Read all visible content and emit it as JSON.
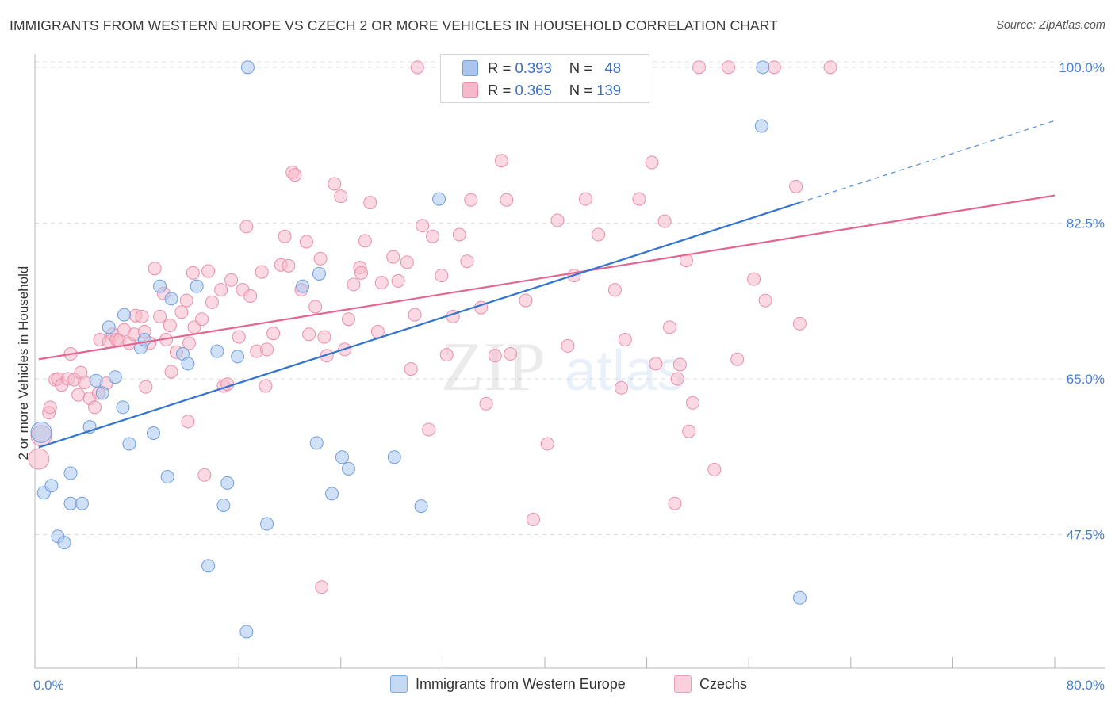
{
  "header": {
    "title": "IMMIGRANTS FROM WESTERN EUROPE VS CZECH 2 OR MORE VEHICLES IN HOUSEHOLD CORRELATION CHART",
    "source": "Source: ZipAtlas.com"
  },
  "watermark": {
    "zip": "ZIP",
    "atlas": "atlas"
  },
  "legend_top": [
    {
      "r_label": "R =",
      "r": "0.393",
      "n_label": "N =",
      "n": "48"
    },
    {
      "r_label": "R =",
      "r": "0.365",
      "n_label": "N =",
      "n": "139"
    }
  ],
  "colors": {
    "blue_fill": "#aac6ee",
    "blue_stroke": "#6f9fde",
    "blue_line": "#3575d0",
    "pink_fill": "#f6b9cb",
    "pink_stroke": "#e98fab",
    "pink_line": "#e4668f",
    "tick_label": "#4a7fd0"
  },
  "chart_data": {
    "type": "scatter",
    "title": "IMMIGRANTS FROM WESTERN EUROPE VS CZECH 2 OR MORE VEHICLES IN HOUSEHOLD CORRELATION CHART",
    "xlabel": "",
    "ylabel": "2 or more Vehicles in Household",
    "xlim": [
      0,
      80
    ],
    "ylim": [
      32.5,
      101.5
    ],
    "x_tick_labels": [
      {
        "value": 0,
        "label": "0.0%"
      },
      {
        "value": 80,
        "label": "80.0%"
      }
    ],
    "y_tick_labels": [
      {
        "value": 47.5,
        "label": "47.5%"
      },
      {
        "value": 65.0,
        "label": "65.0%"
      },
      {
        "value": 82.5,
        "label": "82.5%"
      },
      {
        "value": 100.0,
        "label": "100.0%"
      }
    ],
    "x_minor_ticks": [
      0,
      8,
      16,
      24,
      32,
      40,
      48,
      56,
      64,
      72,
      80
    ],
    "grid": true,
    "legend_position": "top-center",
    "series": [
      {
        "name": "Immigrants from Western Europe",
        "color": "#aac6ee",
        "R": 0.393,
        "N": 48,
        "trend": {
          "x": [
            0.3,
            60
          ],
          "y": [
            57.3,
            84.8
          ],
          "dashed_to": [
            80,
            94.0
          ]
        },
        "points": [
          [
            0.5,
            59.0
          ],
          [
            0.7,
            52.2
          ],
          [
            1.3,
            53.0
          ],
          [
            1.8,
            47.3
          ],
          [
            2.3,
            46.6
          ],
          [
            2.8,
            54.4
          ],
          [
            2.8,
            51.0
          ],
          [
            3.7,
            51.0
          ],
          [
            4.3,
            59.6
          ],
          [
            4.8,
            64.8
          ],
          [
            5.3,
            63.4
          ],
          [
            5.8,
            70.8
          ],
          [
            6.3,
            65.2
          ],
          [
            6.9,
            61.8
          ],
          [
            7.0,
            72.2
          ],
          [
            7.4,
            57.7
          ],
          [
            8.3,
            68.5
          ],
          [
            8.6,
            69.4
          ],
          [
            9.3,
            58.9
          ],
          [
            9.8,
            75.4
          ],
          [
            10.4,
            54.0
          ],
          [
            10.7,
            74.0
          ],
          [
            11.6,
            67.8
          ],
          [
            12.0,
            66.7
          ],
          [
            12.7,
            75.4
          ],
          [
            13.6,
            44.0
          ],
          [
            14.3,
            68.1
          ],
          [
            14.8,
            50.8
          ],
          [
            15.1,
            53.3
          ],
          [
            15.9,
            67.5
          ],
          [
            16.6,
            36.6
          ],
          [
            16.7,
            100.0
          ],
          [
            18.2,
            48.7
          ],
          [
            21.0,
            75.4
          ],
          [
            22.1,
            57.8
          ],
          [
            22.3,
            76.8
          ],
          [
            23.3,
            52.1
          ],
          [
            24.1,
            56.2
          ],
          [
            24.6,
            54.9
          ],
          [
            28.2,
            56.2
          ],
          [
            30.3,
            50.7
          ],
          [
            31.7,
            85.2
          ],
          [
            34.1,
            100.0
          ],
          [
            35.1,
            100.0
          ],
          [
            47.3,
            100.0
          ],
          [
            57.1,
            100.0
          ],
          [
            57.0,
            93.4
          ],
          [
            60.0,
            40.4
          ]
        ]
      },
      {
        "name": "Czechs",
        "color": "#f6b9cb",
        "R": 0.365,
        "N": 139,
        "trend": {
          "x": [
            0.3,
            80
          ],
          "y": [
            67.2,
            85.6
          ]
        },
        "points": [
          [
            0.3,
            56.0
          ],
          [
            0.5,
            58.6
          ],
          [
            1.1,
            61.2
          ],
          [
            1.2,
            61.8
          ],
          [
            1.6,
            64.9
          ],
          [
            1.8,
            65.0
          ],
          [
            2.1,
            64.3
          ],
          [
            2.6,
            65.0
          ],
          [
            2.8,
            67.8
          ],
          [
            3.1,
            64.9
          ],
          [
            3.4,
            63.2
          ],
          [
            3.6,
            65.7
          ],
          [
            3.9,
            64.6
          ],
          [
            4.3,
            62.8
          ],
          [
            4.7,
            61.8
          ],
          [
            5.0,
            63.4
          ],
          [
            5.1,
            69.4
          ],
          [
            5.6,
            64.5
          ],
          [
            5.8,
            69.2
          ],
          [
            6.1,
            70.0
          ],
          [
            6.4,
            69.4
          ],
          [
            6.6,
            69.3
          ],
          [
            7.0,
            70.5
          ],
          [
            7.4,
            69.0
          ],
          [
            7.8,
            70.0
          ],
          [
            7.9,
            72.1
          ],
          [
            8.4,
            72.0
          ],
          [
            8.6,
            70.3
          ],
          [
            8.7,
            64.1
          ],
          [
            9.0,
            69.0
          ],
          [
            9.4,
            77.4
          ],
          [
            9.8,
            72.0
          ],
          [
            10.1,
            74.6
          ],
          [
            10.3,
            69.4
          ],
          [
            10.6,
            71.0
          ],
          [
            10.7,
            65.8
          ],
          [
            11.1,
            68.0
          ],
          [
            11.5,
            72.5
          ],
          [
            11.9,
            73.8
          ],
          [
            12.1,
            69.0
          ],
          [
            12.4,
            76.9
          ],
          [
            12.5,
            70.8
          ],
          [
            13.1,
            71.7
          ],
          [
            13.3,
            54.2
          ],
          [
            13.6,
            77.1
          ],
          [
            13.9,
            73.6
          ],
          [
            14.6,
            75.0
          ],
          [
            14.8,
            64.2
          ],
          [
            15.1,
            64.4
          ],
          [
            15.4,
            76.1
          ],
          [
            16.0,
            69.7
          ],
          [
            16.3,
            75.0
          ],
          [
            16.6,
            82.1
          ],
          [
            16.9,
            74.3
          ],
          [
            17.4,
            68.1
          ],
          [
            17.8,
            77.0
          ],
          [
            18.1,
            64.2
          ],
          [
            18.2,
            68.3
          ],
          [
            18.7,
            70.1
          ],
          [
            19.3,
            77.8
          ],
          [
            19.6,
            81.0
          ],
          [
            19.9,
            77.7
          ],
          [
            20.2,
            88.2
          ],
          [
            20.4,
            87.9
          ],
          [
            20.9,
            75.0
          ],
          [
            21.3,
            80.4
          ],
          [
            21.5,
            70.0
          ],
          [
            22.0,
            73.1
          ],
          [
            22.4,
            78.5
          ],
          [
            22.7,
            69.7
          ],
          [
            22.9,
            67.6
          ],
          [
            23.5,
            86.9
          ],
          [
            24.3,
            68.3
          ],
          [
            24.6,
            71.7
          ],
          [
            25.0,
            75.6
          ],
          [
            25.5,
            77.5
          ],
          [
            25.6,
            76.9
          ],
          [
            25.9,
            80.5
          ],
          [
            26.3,
            84.8
          ],
          [
            26.9,
            70.3
          ],
          [
            27.2,
            75.8
          ],
          [
            28.1,
            78.7
          ],
          [
            28.5,
            76.0
          ],
          [
            29.2,
            78.1
          ],
          [
            29.5,
            66.1
          ],
          [
            29.8,
            72.2
          ],
          [
            30.4,
            82.2
          ],
          [
            30.9,
            59.3
          ],
          [
            31.2,
            81.0
          ],
          [
            31.9,
            76.6
          ],
          [
            32.3,
            67.7
          ],
          [
            32.8,
            72.0
          ],
          [
            33.3,
            81.2
          ],
          [
            33.9,
            78.2
          ],
          [
            34.2,
            85.1
          ],
          [
            35.0,
            73.0
          ],
          [
            35.4,
            62.2
          ],
          [
            36.1,
            67.6
          ],
          [
            36.6,
            89.5
          ],
          [
            37.0,
            85.1
          ],
          [
            37.3,
            67.8
          ],
          [
            38.5,
            73.8
          ],
          [
            39.1,
            49.2
          ],
          [
            40.2,
            57.7
          ],
          [
            41.0,
            82.8
          ],
          [
            41.8,
            68.7
          ],
          [
            42.3,
            76.6
          ],
          [
            43.2,
            85.2
          ],
          [
            44.2,
            81.2
          ],
          [
            44.6,
            100.0
          ],
          [
            45.5,
            75.0
          ],
          [
            46.3,
            69.4
          ],
          [
            47.4,
            85.2
          ],
          [
            48.4,
            89.3
          ],
          [
            48.7,
            66.7
          ],
          [
            49.4,
            82.7
          ],
          [
            49.8,
            70.8
          ],
          [
            50.4,
            65.0
          ],
          [
            50.6,
            66.6
          ],
          [
            51.1,
            78.3
          ],
          [
            51.3,
            59.1
          ],
          [
            51.6,
            62.3
          ],
          [
            52.1,
            100.0
          ],
          [
            53.3,
            54.8
          ],
          [
            54.4,
            100.0
          ],
          [
            55.1,
            67.2
          ],
          [
            56.4,
            76.2
          ],
          [
            57.3,
            73.8
          ],
          [
            58.0,
            100.0
          ],
          [
            59.7,
            86.6
          ],
          [
            60.0,
            71.2
          ],
          [
            62.4,
            100.0
          ],
          [
            22.5,
            41.6
          ],
          [
            30.0,
            100.0
          ],
          [
            46.0,
            64.0
          ],
          [
            24.0,
            85.5
          ],
          [
            36.0,
            100.0
          ],
          [
            12.0,
            60.2
          ],
          [
            50.2,
            51.0
          ]
        ]
      }
    ]
  },
  "legend_bottom": [
    {
      "label": "Immigrants from Western Europe"
    },
    {
      "label": "Czechs"
    }
  ]
}
